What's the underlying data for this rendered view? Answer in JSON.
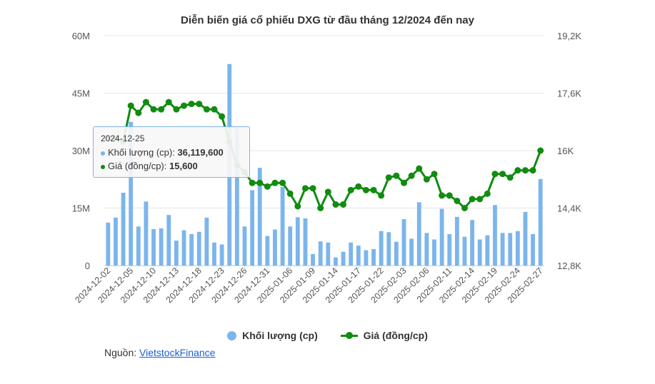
{
  "title": "Diễn biến giá cổ phiếu DXG từ đầu tháng 12/2024 đến nay",
  "legend": {
    "volume": "Khối lượng (cp)",
    "price": "Giá (đồng/cp)"
  },
  "source": {
    "prefix": "Nguồn: ",
    "link": "VietstockFinance"
  },
  "tooltip": {
    "date": "2024-12-25",
    "volume_label": "Khối lượng (cp): ",
    "volume_value": "36,119,600",
    "price_label": "Giá (đồng/cp): ",
    "price_value": "15,600"
  },
  "colors": {
    "volume": "#7cb5ec",
    "price": "#108c10",
    "grid": "#e6e6e6"
  },
  "chart_data": {
    "type": "bar+line",
    "title": "Diễn biến giá cổ phiếu DXG từ đầu tháng 12/2024 đến nay",
    "left_axis": {
      "ticks": [
        "0",
        "15M",
        "30M",
        "45M",
        "60M"
      ],
      "range": [
        0,
        60000000
      ]
    },
    "right_axis": {
      "ticks": [
        "12,8K",
        "14,4K",
        "16K",
        "17,6K",
        "19,2K"
      ],
      "range": [
        12800,
        19200
      ]
    },
    "x_tick_labels": [
      "2024-12-02",
      "2024-12-05",
      "2024-12-10",
      "2024-12-13",
      "2024-12-18",
      "2024-12-23",
      "2024-12-26",
      "2024-12-31",
      "2025-01-06",
      "2025-01-09",
      "2025-01-14",
      "2025-01-17",
      "2025-01-22",
      "2025-02-03",
      "2025-02-06",
      "2025-02-11",
      "2025-02-14",
      "2025-02-19",
      "2025-02-24",
      "2025-02-27"
    ],
    "x_tick_every": 3,
    "grid": true,
    "legend_position": "bottom",
    "series": [
      {
        "name": "Khối lượng (cp)",
        "type": "bar",
        "axis": "left",
        "values": [
          11.2,
          12.5,
          19.0,
          37.5,
          10.2,
          16.7,
          9.5,
          9.7,
          13.2,
          6.5,
          9.2,
          8.2,
          8.8,
          12.5,
          6.0,
          5.5,
          52.6,
          36.1,
          10.2,
          19.7,
          25.5,
          7.7,
          9.4,
          20.5,
          10.2,
          12.6,
          12.3,
          3.0,
          6.3,
          6.0,
          2.1,
          3.6,
          6.0,
          5.2,
          4.0,
          4.3,
          9.0,
          8.7,
          6.2,
          12.1,
          7.0,
          16.5,
          8.5,
          6.8,
          14.8,
          8.2,
          12.7,
          7.5,
          11.9,
          6.8,
          7.9,
          15.8,
          8.5,
          8.5,
          9.0,
          14.0,
          8.2,
          22.6
        ],
        "unit": "million shares"
      },
      {
        "name": "Giá (đồng/cp)",
        "type": "line",
        "axis": "right",
        "values": [
          16350,
          16350,
          16250,
          17250,
          17050,
          17350,
          17150,
          17150,
          17350,
          17150,
          17250,
          17300,
          17300,
          17150,
          17150,
          16950,
          16250,
          15600,
          15400,
          15100,
          15100,
          15000,
          15100,
          15100,
          14800,
          14450,
          14950,
          14950,
          14400,
          14850,
          14500,
          14500,
          14900,
          15000,
          14900,
          14900,
          14750,
          15250,
          15300,
          15100,
          15300,
          15500,
          15200,
          15350,
          14750,
          14750,
          14600,
          14400,
          14650,
          14650,
          14800,
          15350,
          15350,
          15250,
          15450,
          15450,
          15450,
          16000
        ],
        "unit": "đồng"
      }
    ]
  }
}
